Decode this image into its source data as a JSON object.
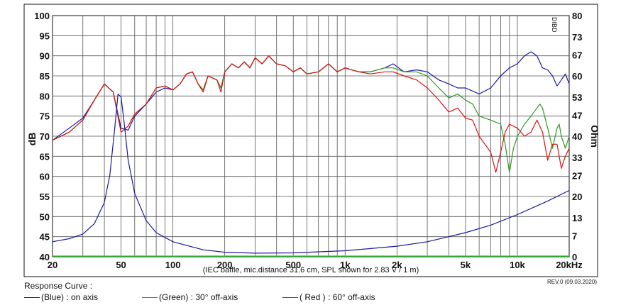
{
  "chart_data": {
    "type": "line",
    "x_scale": "log",
    "xlim": [
      20,
      20000
    ],
    "x_ticks": [
      {
        "value": 20,
        "label": "20"
      },
      {
        "value": 50,
        "label": "50"
      },
      {
        "value": 100,
        "label": "100"
      },
      {
        "value": 200,
        "label": "200"
      },
      {
        "value": 500,
        "label": "500"
      },
      {
        "value": 1000,
        "label": "1k"
      },
      {
        "value": 2000,
        "label": "2k"
      },
      {
        "value": 5000,
        "label": "5k"
      },
      {
        "value": 10000,
        "label": "10k"
      },
      {
        "value": 20000,
        "label": "20kHz"
      }
    ],
    "ylabel": "dB",
    "ylim": [
      40,
      100
    ],
    "y_ticks": [
      40,
      45,
      50,
      55,
      60,
      65,
      70,
      75,
      80,
      85,
      90,
      95,
      100
    ],
    "y2label": "Ohm",
    "y2lim": [
      0,
      80
    ],
    "y2_ticks": [
      0,
      7,
      13,
      20,
      27,
      33,
      40,
      47,
      53,
      60,
      67,
      73,
      80
    ],
    "grid": true,
    "annotation": "(IEC baffle, mic.distance 31.6 cm, SPL shown for 2.83 V / 1 m)",
    "watermark": "DIBD",
    "series": [
      {
        "name": "on axis",
        "color": "#1a1aa0",
        "points": [
          [
            20,
            69
          ],
          [
            25,
            72
          ],
          [
            30,
            74.5
          ],
          [
            35,
            79
          ],
          [
            40,
            83
          ],
          [
            45,
            81
          ],
          [
            50,
            72
          ],
          [
            55,
            71.5
          ],
          [
            60,
            75
          ],
          [
            70,
            78
          ],
          [
            80,
            81
          ],
          [
            90,
            82
          ],
          [
            100,
            81.5
          ],
          [
            110,
            83
          ],
          [
            120,
            85.5
          ],
          [
            130,
            86
          ],
          [
            140,
            83
          ],
          [
            150,
            81.5
          ],
          [
            160,
            85
          ],
          [
            180,
            84
          ],
          [
            190,
            82
          ],
          [
            200,
            86
          ],
          [
            220,
            88
          ],
          [
            240,
            87
          ],
          [
            260,
            88.5
          ],
          [
            280,
            87
          ],
          [
            300,
            89.5
          ],
          [
            330,
            88
          ],
          [
            360,
            90
          ],
          [
            400,
            88
          ],
          [
            450,
            87.5
          ],
          [
            500,
            86
          ],
          [
            550,
            87
          ],
          [
            600,
            85.5
          ],
          [
            700,
            86
          ],
          [
            800,
            88
          ],
          [
            900,
            86
          ],
          [
            1000,
            87
          ],
          [
            1200,
            86
          ],
          [
            1400,
            86
          ],
          [
            1700,
            87
          ],
          [
            1900,
            88
          ],
          [
            2200,
            86
          ],
          [
            2600,
            86.5
          ],
          [
            3000,
            86
          ],
          [
            3500,
            84
          ],
          [
            4000,
            83
          ],
          [
            4500,
            82
          ],
          [
            5000,
            82
          ],
          [
            6000,
            80.5
          ],
          [
            7000,
            82
          ],
          [
            8000,
            85
          ],
          [
            9000,
            87
          ],
          [
            10000,
            88
          ],
          [
            11000,
            90
          ],
          [
            12000,
            91
          ],
          [
            13000,
            90
          ],
          [
            14000,
            87
          ],
          [
            15000,
            86.5
          ],
          [
            16000,
            85
          ],
          [
            17000,
            82.5
          ],
          [
            18000,
            84
          ],
          [
            19000,
            85.5
          ],
          [
            20000,
            83
          ]
        ]
      },
      {
        "name": "30° off-axis",
        "color": "#2e9a1e",
        "points": [
          [
            20,
            69
          ],
          [
            25,
            71
          ],
          [
            30,
            74
          ],
          [
            35,
            79
          ],
          [
            40,
            83
          ],
          [
            45,
            81
          ],
          [
            50,
            71
          ],
          [
            55,
            72.5
          ],
          [
            60,
            75.5
          ],
          [
            70,
            78
          ],
          [
            80,
            82
          ],
          [
            90,
            82.5
          ],
          [
            100,
            81.5
          ],
          [
            110,
            83
          ],
          [
            120,
            85.5
          ],
          [
            130,
            86
          ],
          [
            140,
            83
          ],
          [
            150,
            81.5
          ],
          [
            160,
            85
          ],
          [
            180,
            84
          ],
          [
            190,
            82
          ],
          [
            200,
            86
          ],
          [
            220,
            88
          ],
          [
            240,
            87
          ],
          [
            260,
            88.5
          ],
          [
            280,
            87
          ],
          [
            300,
            89.5
          ],
          [
            330,
            88
          ],
          [
            360,
            90
          ],
          [
            400,
            88
          ],
          [
            450,
            87.5
          ],
          [
            500,
            86
          ],
          [
            550,
            87
          ],
          [
            600,
            85.5
          ],
          [
            700,
            86
          ],
          [
            800,
            88
          ],
          [
            900,
            86
          ],
          [
            1000,
            87
          ],
          [
            1200,
            86
          ],
          [
            1400,
            86
          ],
          [
            1700,
            87
          ],
          [
            1900,
            87
          ],
          [
            2200,
            86
          ],
          [
            2600,
            86
          ],
          [
            3000,
            85
          ],
          [
            3500,
            82
          ],
          [
            4000,
            79.5
          ],
          [
            4500,
            80.5
          ],
          [
            5000,
            79
          ],
          [
            5500,
            78
          ],
          [
            6000,
            75
          ],
          [
            7000,
            74
          ],
          [
            8000,
            73
          ],
          [
            8500,
            68
          ],
          [
            9000,
            61
          ],
          [
            9500,
            67
          ],
          [
            10000,
            70
          ],
          [
            11000,
            73
          ],
          [
            12000,
            75
          ],
          [
            13000,
            77
          ],
          [
            13500,
            78
          ],
          [
            14000,
            77
          ],
          [
            15000,
            72
          ],
          [
            16000,
            67
          ],
          [
            17000,
            72
          ],
          [
            17500,
            73
          ],
          [
            18000,
            70
          ],
          [
            19000,
            67
          ],
          [
            20000,
            70
          ]
        ]
      },
      {
        "name": "60° off-axis",
        "color": "#e01010",
        "points": [
          [
            20,
            69
          ],
          [
            25,
            71
          ],
          [
            30,
            74
          ],
          [
            35,
            79
          ],
          [
            40,
            83
          ],
          [
            45,
            81
          ],
          [
            50,
            71
          ],
          [
            55,
            72.5
          ],
          [
            60,
            75.5
          ],
          [
            70,
            78
          ],
          [
            80,
            82
          ],
          [
            90,
            82.5
          ],
          [
            100,
            81.5
          ],
          [
            110,
            83
          ],
          [
            120,
            85.5
          ],
          [
            130,
            86
          ],
          [
            140,
            83
          ],
          [
            150,
            81
          ],
          [
            160,
            85
          ],
          [
            180,
            84
          ],
          [
            190,
            81
          ],
          [
            200,
            86
          ],
          [
            220,
            88
          ],
          [
            240,
            87
          ],
          [
            260,
            88.5
          ],
          [
            280,
            87
          ],
          [
            300,
            89.5
          ],
          [
            330,
            88
          ],
          [
            360,
            90
          ],
          [
            400,
            88
          ],
          [
            450,
            87.5
          ],
          [
            500,
            86
          ],
          [
            550,
            87
          ],
          [
            600,
            85.5
          ],
          [
            700,
            86
          ],
          [
            800,
            88
          ],
          [
            900,
            86
          ],
          [
            1000,
            87
          ],
          [
            1200,
            86
          ],
          [
            1400,
            85.5
          ],
          [
            1700,
            86
          ],
          [
            1900,
            86
          ],
          [
            2200,
            85
          ],
          [
            2600,
            84
          ],
          [
            3000,
            82
          ],
          [
            3500,
            79
          ],
          [
            4000,
            76
          ],
          [
            4500,
            77
          ],
          [
            5000,
            74.5
          ],
          [
            5500,
            74
          ],
          [
            6000,
            70
          ],
          [
            7000,
            66
          ],
          [
            7500,
            61
          ],
          [
            8000,
            66
          ],
          [
            8500,
            71
          ],
          [
            9000,
            73
          ],
          [
            10000,
            72
          ],
          [
            11000,
            70
          ],
          [
            12000,
            71
          ],
          [
            13000,
            74
          ],
          [
            14000,
            71
          ],
          [
            15000,
            64
          ],
          [
            16000,
            68
          ],
          [
            17000,
            68
          ],
          [
            18000,
            62
          ],
          [
            19000,
            65
          ],
          [
            20000,
            67
          ]
        ]
      },
      {
        "name": "Impedance",
        "axis": "right",
        "color": "#1a1aa0",
        "points": [
          [
            20,
            5
          ],
          [
            25,
            6
          ],
          [
            30,
            7.5
          ],
          [
            35,
            11
          ],
          [
            40,
            18
          ],
          [
            43,
            27
          ],
          [
            46,
            43
          ],
          [
            48,
            54
          ],
          [
            50,
            53
          ],
          [
            52,
            45
          ],
          [
            55,
            32
          ],
          [
            60,
            21
          ],
          [
            70,
            12
          ],
          [
            80,
            8
          ],
          [
            100,
            5
          ],
          [
            150,
            2.3
          ],
          [
            200,
            1.5
          ],
          [
            300,
            1.2
          ],
          [
            500,
            1.3
          ],
          [
            1000,
            2
          ],
          [
            2000,
            3.5
          ],
          [
            3000,
            5
          ],
          [
            5000,
            8
          ],
          [
            7000,
            10.5
          ],
          [
            10000,
            14
          ],
          [
            15000,
            18.5
          ],
          [
            20000,
            22
          ]
        ]
      }
    ]
  },
  "legend": {
    "title": "Response Curve :",
    "items": [
      {
        "label": "(Blue)  : on axis",
        "color": "#1a1aa0"
      },
      {
        "label": "(Green) : 30° off-axis",
        "color": "#2e9a1e"
      },
      {
        "label": "( Red ) : 60° off-axis",
        "color": "#e01010"
      }
    ]
  },
  "revision": "REV.0 (09.03.2020)"
}
